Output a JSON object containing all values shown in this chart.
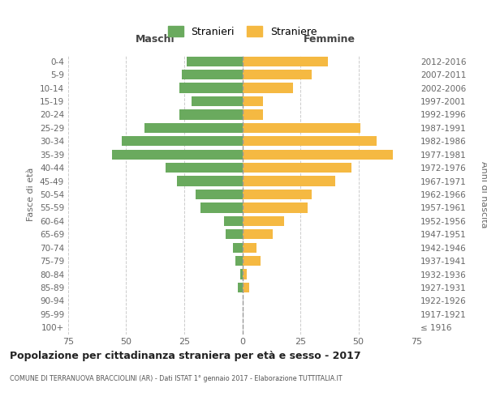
{
  "age_groups": [
    "100+",
    "95-99",
    "90-94",
    "85-89",
    "80-84",
    "75-79",
    "70-74",
    "65-69",
    "60-64",
    "55-59",
    "50-54",
    "45-49",
    "40-44",
    "35-39",
    "30-34",
    "25-29",
    "20-24",
    "15-19",
    "10-14",
    "5-9",
    "0-4"
  ],
  "birth_years": [
    "≤ 1916",
    "1917-1921",
    "1922-1926",
    "1927-1931",
    "1932-1936",
    "1937-1941",
    "1942-1946",
    "1947-1951",
    "1952-1956",
    "1957-1961",
    "1962-1966",
    "1967-1971",
    "1972-1976",
    "1977-1981",
    "1982-1986",
    "1987-1991",
    "1992-1996",
    "1997-2001",
    "2002-2006",
    "2007-2011",
    "2012-2016"
  ],
  "maschi": [
    0,
    0,
    0,
    2,
    1,
    3,
    4,
    7,
    8,
    18,
    20,
    28,
    33,
    56,
    52,
    42,
    27,
    22,
    27,
    26,
    24
  ],
  "femmine": [
    0,
    0,
    0,
    3,
    2,
    8,
    6,
    13,
    18,
    28,
    30,
    40,
    47,
    65,
    58,
    51,
    9,
    9,
    22,
    30,
    37
  ],
  "color_maschi": "#6aaa5e",
  "color_femmine": "#f5b942",
  "title": "Popolazione per cittadinanza straniera per età e sesso - 2017",
  "subtitle": "COMUNE DI TERRANUOVA BRACCIOLINI (AR) - Dati ISTAT 1° gennaio 2017 - Elaborazione TUTTITALIA.IT",
  "header_left": "Maschi",
  "header_right": "Femmine",
  "ylabel_left": "Fasce di età",
  "ylabel_right": "Anni di nascita",
  "legend_stranieri": "Stranieri",
  "legend_straniere": "Straniere",
  "xlim": 75,
  "background_color": "#ffffff",
  "grid_color": "#cccccc"
}
